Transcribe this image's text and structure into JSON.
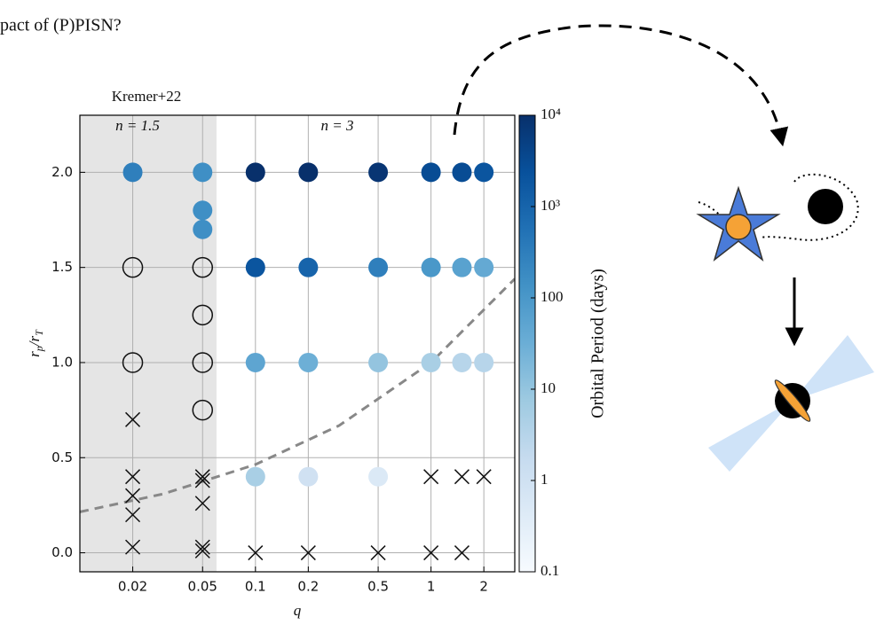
{
  "title": "pact of (P)PISN?",
  "chart_data": {
    "type": "scatter",
    "x_label": "q",
    "y_label": "r_p/r_T",
    "log_x": true,
    "grid": true,
    "xlim": [
      0.01,
      3
    ],
    "xticks": [
      0.02,
      0.05,
      0.1,
      0.2,
      0.5,
      1,
      2
    ],
    "ylim": [
      -0.1,
      2.3
    ],
    "yticks": [
      {
        "value": 0,
        "label": "0.0"
      },
      0.5,
      {
        "value": 1,
        "label": "1.0"
      },
      1.5,
      {
        "value": 2,
        "label": "2.0"
      }
    ],
    "shaded_region": [
      0.01,
      0.06
    ],
    "annotations": [
      "Kremer+22",
      "n = 1.5",
      "n = 3"
    ],
    "series": [
      {
        "marker": "filled",
        "x": [
          0.02,
          0.05,
          0.05,
          0.05,
          0.1,
          0.2,
          0.5,
          1,
          1.5,
          2,
          0.1,
          0.2,
          0.5,
          1,
          1.5,
          2,
          0.1,
          0.2,
          0.5,
          1,
          1.5,
          2,
          0.1,
          0.2,
          0.5
        ],
        "values": [
          2,
          2,
          1.8,
          1.7,
          2,
          2,
          2,
          2,
          2,
          2,
          1.5,
          1.5,
          1.5,
          1.5,
          1.5,
          1.5,
          1,
          1,
          1,
          1,
          1,
          1,
          0.4,
          0.4,
          0.4
        ],
        "period": [
          300,
          150,
          150,
          150,
          10000,
          10000,
          8000,
          3000,
          3000,
          2000,
          2000,
          1000,
          300,
          100,
          60,
          40,
          50,
          30,
          10,
          5,
          3,
          3,
          5,
          1,
          0.5
        ]
      },
      {
        "marker": "open",
        "color": "#111111",
        "x": [
          0.02,
          0.05,
          0.05,
          0.02,
          0.05,
          0.05
        ],
        "values": [
          1.5,
          1.5,
          1.25,
          1,
          1,
          0.75
        ]
      },
      {
        "marker": "x",
        "color": "#111111",
        "x": [
          0.02,
          0.02,
          0.02,
          0.02,
          0.02,
          0.05,
          0.05,
          0.05,
          0.05,
          0.05,
          1,
          1.5,
          2,
          0.1,
          0.2,
          0.5,
          1,
          1.5
        ],
        "values": [
          0.7,
          0.4,
          0.3,
          0.2,
          0.03,
          0.4,
          0.38,
          0.26,
          0.03,
          0.01,
          0.4,
          0.4,
          0.4,
          0,
          0,
          0,
          0,
          0
        ]
      }
    ],
    "reference_curve": {
      "color": "#888888",
      "x": [
        0.01,
        0.03,
        0.1,
        0.3,
        1,
        3
      ],
      "values": [
        0.215,
        0.31,
        0.464,
        0.669,
        1,
        1.44
      ]
    },
    "colorbar": {
      "label": "Orbital Period (days)",
      "log": true,
      "lim": [
        0.1,
        10000
      ],
      "ticks": [
        0.1,
        1,
        10,
        100,
        {
          "value": 1000,
          "label": "10³"
        },
        {
          "value": 10000,
          "label": "10⁴"
        }
      ],
      "colormap": [
        "#f7fbff",
        "#deebf7",
        "#c6dbef",
        "#9ecae1",
        "#6baed6",
        "#4292c6",
        "#2171b5",
        "#08519c",
        "#08306b"
      ]
    }
  }
}
